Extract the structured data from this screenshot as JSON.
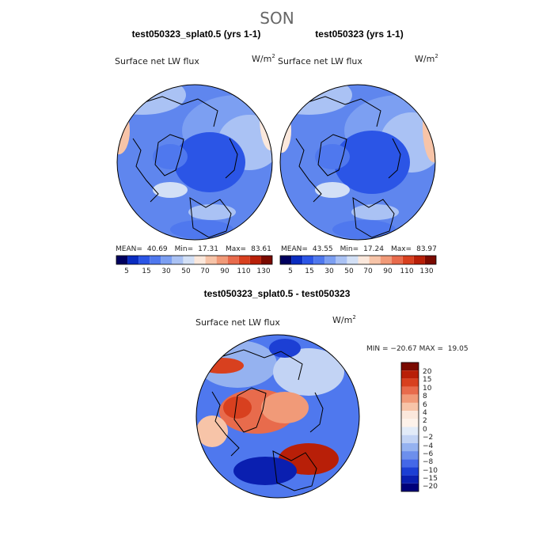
{
  "title": "SON",
  "variable": "Surface net LW flux",
  "units_base": "W/m",
  "units_exp": "2",
  "chart_data": [
    {
      "type": "heatmap",
      "projection": "north-polar-stereographic",
      "title": "test050323_splat0.5 (yrs 1-1)",
      "field": "Surface net LW flux",
      "stats": {
        "mean_label": "MEAN=",
        "mean": "40.69",
        "min_label": "Min=",
        "min": "17.31",
        "max_label": "Max=",
        "max": "83.61"
      },
      "levels": [
        5,
        15,
        30,
        50,
        70,
        90,
        110,
        130
      ],
      "colorbar_labels": [
        "5",
        "15",
        "30",
        "50",
        "70",
        "90",
        "110",
        "130"
      ]
    },
    {
      "type": "heatmap",
      "projection": "north-polar-stereographic",
      "title": "test050323 (yrs 1-1)",
      "field": "Surface net LW flux",
      "stats": {
        "mean_label": "MEAN=",
        "mean": "43.55",
        "min_label": "Min=",
        "min": "17.24",
        "max_label": "Max=",
        "max": "83.97"
      },
      "levels": [
        5,
        15,
        30,
        50,
        70,
        90,
        110,
        130
      ],
      "colorbar_labels": [
        "5",
        "15",
        "30",
        "50",
        "70",
        "90",
        "110",
        "130"
      ]
    },
    {
      "type": "heatmap",
      "projection": "north-polar-stereographic",
      "title": "test050323_splat0.5 - test050323",
      "field": "Surface net LW flux",
      "stats_text": "MIN = −20.67 MAX =  19.05",
      "levels": [
        20,
        15,
        10,
        8,
        6,
        4,
        2,
        0,
        -2,
        -4,
        -6,
        -8,
        -10,
        -15,
        -20
      ],
      "colorbar_labels": [
        "20",
        "15",
        "10",
        "8",
        "6",
        "4",
        "2",
        "0",
        "−2",
        "−4",
        "−6",
        "−8",
        "−10",
        "−15",
        "−20"
      ]
    }
  ],
  "colors": {
    "seq": [
      "#00005e",
      "#0a2cc0",
      "#2b55e6",
      "#4f78ee",
      "#7c9ff2",
      "#aac2f4",
      "#d3e0f6",
      "#fbe8dc",
      "#f7c4a8",
      "#f19a78",
      "#e86b4c",
      "#d8401f",
      "#b81f08",
      "#7a0a00"
    ],
    "diff": [
      "#7a0a00",
      "#b81f08",
      "#d8401f",
      "#e86b4c",
      "#f19a78",
      "#f7c4a8",
      "#fbe8dc",
      "#fdf2ea",
      "#e2ebf8",
      "#c2d3f4",
      "#95b2f0",
      "#6d8fec",
      "#4468e8",
      "#1c3fd4",
      "#0a1fb0",
      "#00007a"
    ]
  }
}
